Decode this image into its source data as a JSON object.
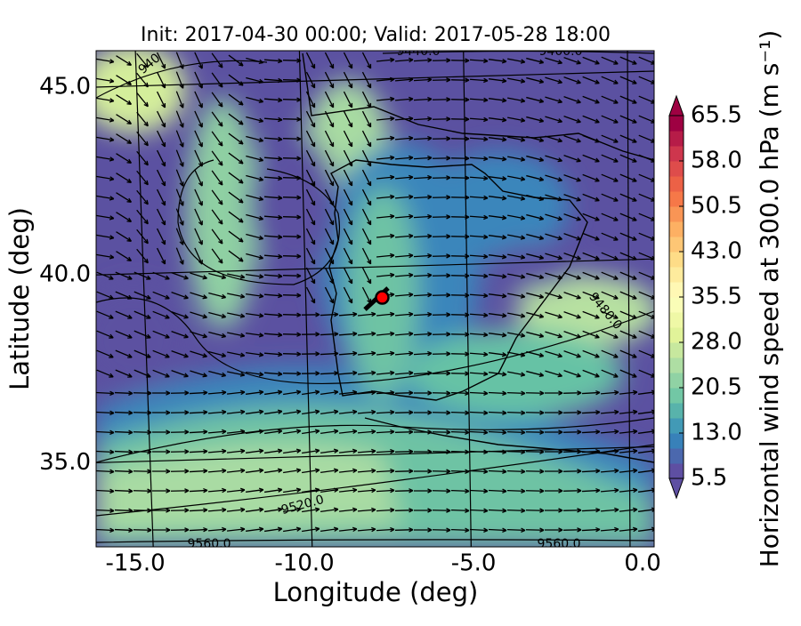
{
  "chart_data": {
    "type": "map",
    "title": "Init: 2017-04-30 00:00; Valid: 2017-05-28 18:00",
    "xlabel": "Longitude (deg)",
    "ylabel": "Latitude (deg)",
    "xlim": [
      -16.16,
      0.34
    ],
    "ylim": [
      32.76,
      45.97
    ],
    "xticks": [
      {
        "value": -15,
        "label": "-15.0"
      },
      {
        "value": -10,
        "label": "-10.0"
      },
      {
        "value": -5,
        "label": "-5.0"
      },
      {
        "value": 0,
        "label": "0.0"
      }
    ],
    "yticks": [
      {
        "value": 35,
        "label": "35.0"
      },
      {
        "value": 40,
        "label": "40.0"
      },
      {
        "value": 45,
        "label": "45.0"
      }
    ],
    "colorbar": {
      "label": "Horizontal wind speed at 300.0 hPa (m s⁻¹)",
      "lim": [
        5.5,
        65.5
      ],
      "step": 2.5,
      "ticks": [
        {
          "value": 5.5,
          "label": "5.5"
        },
        {
          "value": 13,
          "label": "13.0"
        },
        {
          "value": 20.5,
          "label": "20.5"
        },
        {
          "value": 28,
          "label": "28.0"
        },
        {
          "value": 35.5,
          "label": "35.5"
        },
        {
          "value": 43,
          "label": "43.0"
        },
        {
          "value": 50.5,
          "label": "50.5"
        },
        {
          "value": 58,
          "label": "58.0"
        },
        {
          "value": 65.5,
          "label": "65.5"
        }
      ],
      "colors": [
        "#5e4fa2",
        "#3288bd",
        "#66c2a5",
        "#abdda4",
        "#e6f598",
        "#ffffbf",
        "#fee08b",
        "#fdae61",
        "#f46d43",
        "#d53e4f",
        "#9e0142"
      ]
    },
    "contour_labels": [
      "9440.0",
      "9400.0",
      "940",
      "9480.0",
      "9520.0",
      "9560.0",
      "9560.0"
    ],
    "marker": {
      "lon": -7.7,
      "lat": 39.4,
      "color": "#ff0000"
    }
  }
}
